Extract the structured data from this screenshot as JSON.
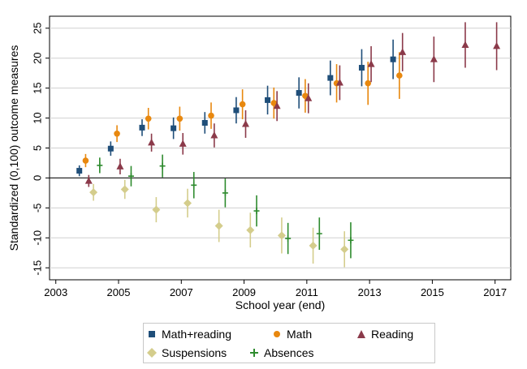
{
  "chart_data": {
    "type": "scatter",
    "title": "",
    "xlabel": "School year (end)",
    "ylabel": "Standardized (0,100) outcome measures",
    "xlim": [
      2002.8,
      2017.5
    ],
    "ylim": [
      -17,
      27
    ],
    "x_ticks": [
      2003,
      2005,
      2007,
      2009,
      2011,
      2013,
      2015,
      2017
    ],
    "y_ticks": [
      -15,
      -10,
      -5,
      0,
      5,
      10,
      15,
      20,
      25
    ],
    "x_tick_labels": [
      "2003",
      "2005",
      "2007",
      "2009",
      "2011",
      "2013",
      "2015",
      "2017"
    ],
    "y_tick_labels": [
      "-15",
      "-10",
      "-5",
      "0",
      "5",
      "10",
      "15",
      "20",
      "25"
    ],
    "grid": "horizontal",
    "zero_line": true,
    "legend_position": "bottom",
    "series": [
      {
        "name": "Math+reading",
        "marker": "square",
        "color": "#1f4e79",
        "points": [
          {
            "x": 2003.75,
            "y": 1.2,
            "lo": 0.3,
            "hi": 2.1
          },
          {
            "x": 2004.75,
            "y": 4.9,
            "lo": 3.7,
            "hi": 6.1
          },
          {
            "x": 2005.75,
            "y": 8.4,
            "lo": 7.0,
            "hi": 9.8
          },
          {
            "x": 2006.75,
            "y": 8.3,
            "lo": 6.5,
            "hi": 10.1
          },
          {
            "x": 2007.75,
            "y": 9.2,
            "lo": 7.4,
            "hi": 11.0
          },
          {
            "x": 2008.75,
            "y": 11.3,
            "lo": 9.1,
            "hi": 13.5
          },
          {
            "x": 2009.75,
            "y": 13.0,
            "lo": 10.6,
            "hi": 15.4
          },
          {
            "x": 2010.75,
            "y": 14.2,
            "lo": 11.6,
            "hi": 16.8
          },
          {
            "x": 2011.75,
            "y": 16.7,
            "lo": 13.8,
            "hi": 19.6
          },
          {
            "x": 2012.75,
            "y": 18.4,
            "lo": 15.3,
            "hi": 21.5
          },
          {
            "x": 2013.75,
            "y": 19.8,
            "lo": 16.5,
            "hi": 23.1
          }
        ]
      },
      {
        "name": "Math",
        "marker": "circle",
        "color": "#e8880f",
        "points": [
          {
            "x": 2003.95,
            "y": 2.9,
            "lo": 1.8,
            "hi": 4.0
          },
          {
            "x": 2004.95,
            "y": 7.4,
            "lo": 6.0,
            "hi": 8.8
          },
          {
            "x": 2005.95,
            "y": 9.9,
            "lo": 8.1,
            "hi": 11.7
          },
          {
            "x": 2006.95,
            "y": 9.9,
            "lo": 7.9,
            "hi": 11.9
          },
          {
            "x": 2007.95,
            "y": 10.4,
            "lo": 8.2,
            "hi": 12.6
          },
          {
            "x": 2008.95,
            "y": 12.3,
            "lo": 9.8,
            "hi": 14.8
          },
          {
            "x": 2009.95,
            "y": 12.5,
            "lo": 9.9,
            "hi": 15.1
          },
          {
            "x": 2010.95,
            "y": 13.7,
            "lo": 10.9,
            "hi": 16.5
          },
          {
            "x": 2011.95,
            "y": 15.8,
            "lo": 12.6,
            "hi": 19.0
          },
          {
            "x": 2012.95,
            "y": 15.8,
            "lo": 12.2,
            "hi": 19.4
          },
          {
            "x": 2013.95,
            "y": 17.1,
            "lo": 13.2,
            "hi": 21.0
          }
        ]
      },
      {
        "name": "Reading",
        "marker": "triangle",
        "color": "#8b3a4a",
        "points": [
          {
            "x": 2004.05,
            "y": -0.5,
            "lo": -1.5,
            "hi": 0.5
          },
          {
            "x": 2005.05,
            "y": 1.9,
            "lo": 0.6,
            "hi": 3.2
          },
          {
            "x": 2006.05,
            "y": 5.9,
            "lo": 4.4,
            "hi": 7.4
          },
          {
            "x": 2007.05,
            "y": 5.7,
            "lo": 3.9,
            "hi": 7.5
          },
          {
            "x": 2008.05,
            "y": 7.1,
            "lo": 5.1,
            "hi": 9.1
          },
          {
            "x": 2009.05,
            "y": 9.0,
            "lo": 6.7,
            "hi": 11.3
          },
          {
            "x": 2010.05,
            "y": 12.0,
            "lo": 9.5,
            "hi": 14.5
          },
          {
            "x": 2011.05,
            "y": 13.3,
            "lo": 10.8,
            "hi": 15.8
          },
          {
            "x": 2012.05,
            "y": 15.9,
            "lo": 13.0,
            "hi": 18.8
          },
          {
            "x": 2013.05,
            "y": 19.0,
            "lo": 16.0,
            "hi": 22.0
          },
          {
            "x": 2014.05,
            "y": 21.0,
            "lo": 17.8,
            "hi": 24.2
          },
          {
            "x": 2015.05,
            "y": 19.8,
            "lo": 16.0,
            "hi": 23.6
          },
          {
            "x": 2016.05,
            "y": 22.2,
            "lo": 18.4,
            "hi": 26.0
          },
          {
            "x": 2017.05,
            "y": 22.0,
            "lo": 18.0,
            "hi": 26.0
          }
        ]
      },
      {
        "name": "Suspensions",
        "marker": "diamond",
        "color": "#d4cd8c",
        "points": [
          {
            "x": 2004.2,
            "y": -2.4,
            "lo": -3.8,
            "hi": -1.0
          },
          {
            "x": 2005.2,
            "y": -1.9,
            "lo": -3.5,
            "hi": -0.3
          },
          {
            "x": 2006.2,
            "y": -5.3,
            "lo": -7.4,
            "hi": -3.2
          },
          {
            "x": 2007.2,
            "y": -4.2,
            "lo": -6.6,
            "hi": -1.8
          },
          {
            "x": 2008.2,
            "y": -8.0,
            "lo": -10.7,
            "hi": -5.3
          },
          {
            "x": 2009.2,
            "y": -8.7,
            "lo": -11.6,
            "hi": -5.8
          },
          {
            "x": 2010.2,
            "y": -9.6,
            "lo": -12.6,
            "hi": -6.6
          },
          {
            "x": 2011.2,
            "y": -11.3,
            "lo": -14.3,
            "hi": -8.3
          },
          {
            "x": 2012.2,
            "y": -11.9,
            "lo": -14.9,
            "hi": -8.9
          }
        ]
      },
      {
        "name": "Absences",
        "marker": "plus",
        "color": "#2e8b2e",
        "points": [
          {
            "x": 2004.4,
            "y": 2.1,
            "lo": 0.8,
            "hi": 3.4
          },
          {
            "x": 2005.4,
            "y": 0.3,
            "lo": -1.4,
            "hi": 2.0
          },
          {
            "x": 2006.4,
            "y": 2.0,
            "lo": 0.1,
            "hi": 3.9
          },
          {
            "x": 2007.4,
            "y": -1.2,
            "lo": -3.4,
            "hi": 1.0
          },
          {
            "x": 2008.4,
            "y": -2.5,
            "lo": -4.9,
            "hi": -0.1
          },
          {
            "x": 2009.4,
            "y": -5.5,
            "lo": -8.1,
            "hi": -2.9
          },
          {
            "x": 2010.4,
            "y": -10.1,
            "lo": -12.7,
            "hi": -7.5
          },
          {
            "x": 2011.4,
            "y": -9.3,
            "lo": -12.0,
            "hi": -6.6
          },
          {
            "x": 2012.4,
            "y": -10.4,
            "lo": -13.4,
            "hi": -7.4
          }
        ]
      }
    ]
  }
}
